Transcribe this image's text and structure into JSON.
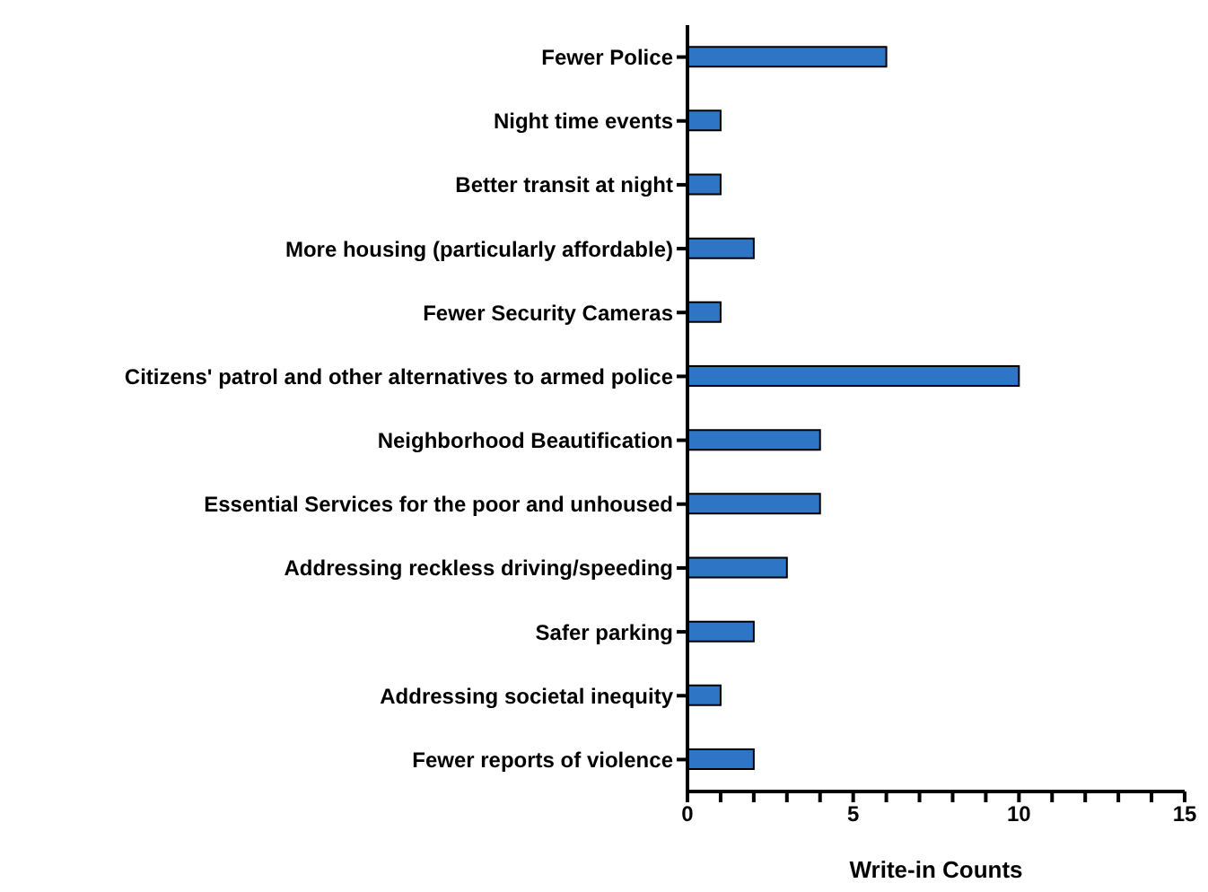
{
  "chart_data": {
    "type": "bar",
    "orientation": "horizontal",
    "xlabel": "Write-in Counts",
    "categories": [
      "Fewer Police",
      "Night time events",
      "Better transit at night",
      "More housing (particularly affordable)",
      "Fewer Security Cameras",
      "Citizens' patrol and other alternatives to armed police",
      "Neighborhood Beautification",
      "Essential Services for the poor and unhoused",
      "Addressing reckless driving/speeding",
      "Safer parking",
      "Addressing societal inequity",
      "Fewer reports of violence"
    ],
    "values": [
      6,
      1,
      1,
      2,
      1,
      10,
      4,
      4,
      3,
      2,
      1,
      2
    ],
    "color": "#2f75c6",
    "xlim": [
      0,
      15
    ],
    "xticks": [
      0,
      {
        "value": 1,
        "label": null
      },
      {
        "value": 2,
        "label": null
      },
      {
        "value": 3,
        "label": null
      },
      {
        "value": 4,
        "label": null
      },
      5,
      {
        "value": 6,
        "label": null
      },
      {
        "value": 7,
        "label": null
      },
      {
        "value": 8,
        "label": null
      },
      {
        "value": 9,
        "label": null
      },
      10,
      {
        "value": 11,
        "label": null
      },
      {
        "value": 12,
        "label": null
      },
      {
        "value": 13,
        "label": null
      },
      {
        "value": 14,
        "label": null
      },
      15
    ],
    "grid": false,
    "legend": false
  }
}
